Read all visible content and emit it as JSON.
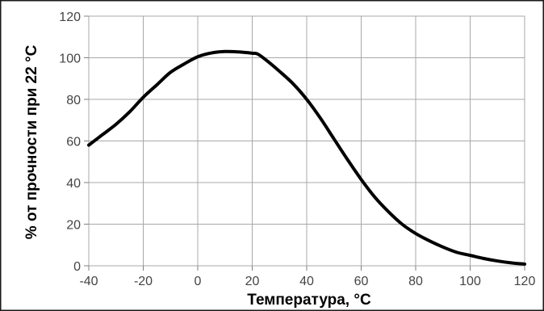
{
  "chart_data": {
    "type": "line",
    "title": "",
    "xlabel": "Температура, °C",
    "ylabel": "% от прочности при 22 °C",
    "xlim": [
      -40,
      120
    ],
    "ylim": [
      0,
      120
    ],
    "xticks": [
      -40,
      -20,
      0,
      20,
      40,
      60,
      80,
      100,
      120
    ],
    "yticks": [
      0,
      20,
      40,
      60,
      80,
      100,
      120
    ],
    "grid": true,
    "series": [
      {
        "color": "#000000",
        "x": [
          -40,
          -35,
          -30,
          -25,
          -20,
          -15,
          -10,
          -5,
          0,
          5,
          10,
          15,
          20,
          22,
          25,
          30,
          35,
          40,
          45,
          50,
          55,
          60,
          65,
          70,
          75,
          80,
          85,
          90,
          95,
          100,
          105,
          110,
          115,
          120
        ],
        "y": [
          58,
          63,
          68,
          74,
          81,
          87,
          93,
          97,
          100.5,
          102.3,
          103,
          102.8,
          102.2,
          101.8,
          99,
          93.5,
          87.5,
          80,
          71,
          61,
          51,
          41.5,
          33,
          26,
          20,
          15.5,
          12,
          9,
          6.5,
          5,
          3.5,
          2.3,
          1.4,
          0.8
        ]
      }
    ]
  }
}
